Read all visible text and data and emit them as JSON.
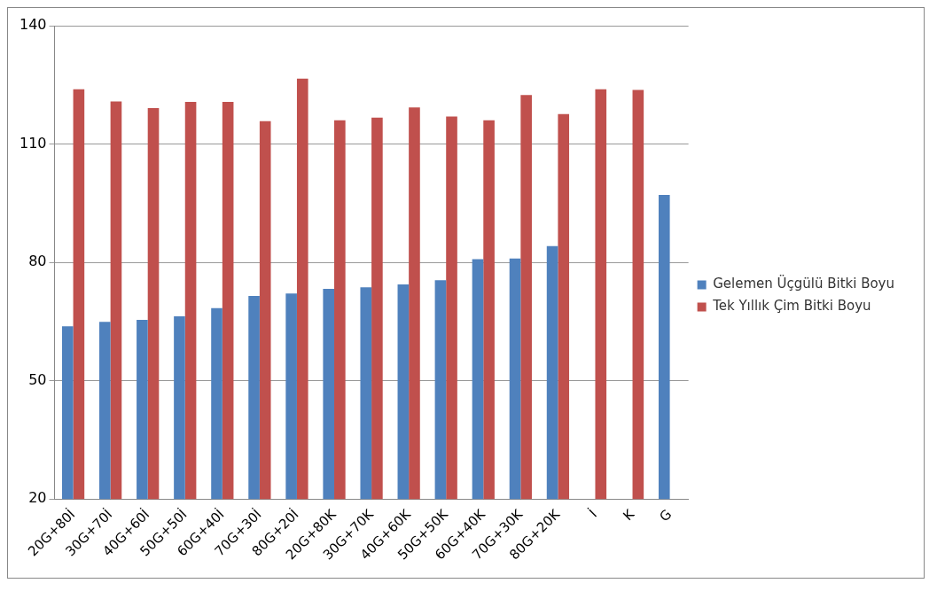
{
  "chart_data": {
    "type": "bar",
    "categories": [
      "20G+80İ",
      "30G+70İ",
      "40G+60İ",
      "50G+50İ",
      "60G+40İ",
      "70G+30İ",
      "80G+20İ",
      "20G+80K",
      "30G+70K",
      "40G+60K",
      "50G+50K",
      "60G+40K",
      "70G+30K",
      "80G+20K",
      "İ",
      "K",
      "G"
    ],
    "series": [
      {
        "name": "Gelemen Üçgülü Bitki Boyu",
        "color": "#4f81bd",
        "values": [
          63.8,
          64.9,
          65.4,
          66.3,
          68.4,
          71.5,
          72.1,
          73.3,
          73.7,
          74.4,
          75.5,
          80.8,
          81.0,
          84.1,
          null,
          null,
          97.1
        ]
      },
      {
        "name": "Tek Yıllık Çim Bitki Boyu",
        "color": "#c0504d",
        "values": [
          123.9,
          120.8,
          119.1,
          120.7,
          120.7,
          115.8,
          126.6,
          116.0,
          116.7,
          119.3,
          117.0,
          116.0,
          122.4,
          117.6,
          123.9,
          123.7,
          null
        ]
      }
    ],
    "ylim": [
      20,
      140
    ],
    "yticks": [
      20,
      50,
      80,
      110,
      140
    ],
    "grid": "y",
    "legend": "right"
  }
}
